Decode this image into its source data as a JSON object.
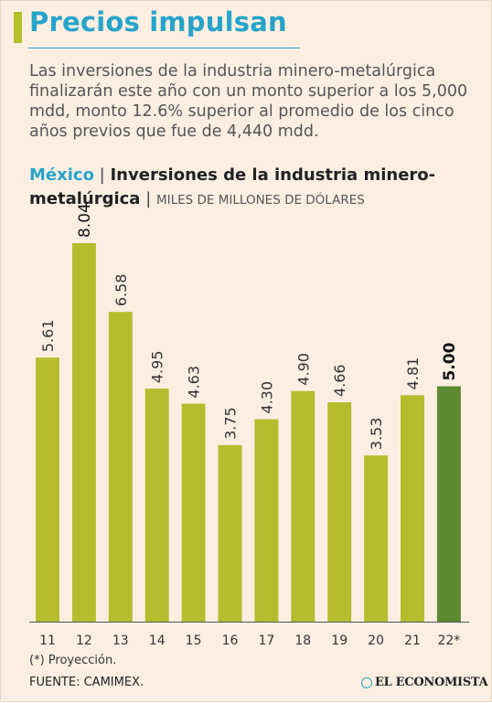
{
  "header": {
    "title": "Precios impulsan",
    "subtitle": "Las inversiones de la industria minero-metalúrgica finalizarán este año con un monto superior a los 5,000 mdd, monto 12.6% superior al promedio de los cinco años previos que fue de 4,440 mdd."
  },
  "chart_data": {
    "type": "bar",
    "country_label": "México",
    "separator": "|",
    "title": "Inversiones de la industria minero-metalúrgica",
    "units": "MILES DE MILLONES DE DÓLARES",
    "categories": [
      "11",
      "12",
      "13",
      "14",
      "15",
      "16",
      "17",
      "18",
      "19",
      "20",
      "21",
      "22*"
    ],
    "values": [
      5.61,
      8.04,
      6.58,
      4.95,
      4.63,
      3.75,
      4.3,
      4.9,
      4.66,
      3.53,
      4.81,
      5.0
    ],
    "value_labels": [
      "5.61",
      "8.04",
      "6.58",
      "4.95",
      "4.63",
      "3.75",
      "4.30",
      "4.90",
      "4.66",
      "3.53",
      "4.81",
      "5.00"
    ],
    "emphasis_values": [
      false,
      true,
      false,
      false,
      false,
      false,
      false,
      false,
      false,
      false,
      false,
      true
    ],
    "projection_index": 11,
    "colors": {
      "bar": "#b5bd2f",
      "projection_bar": "#5e8a33",
      "title_accent": "#27a4c9",
      "axis": "#555555"
    },
    "ylim": [
      0,
      8.04
    ],
    "grid": false,
    "legend": "none"
  },
  "footer": {
    "note": "(*) Proyección.",
    "source": "FUENTE: CAMIMEX.",
    "logo_text": "EL ECONOMISTA",
    "logo_icon": "globe-icon"
  }
}
